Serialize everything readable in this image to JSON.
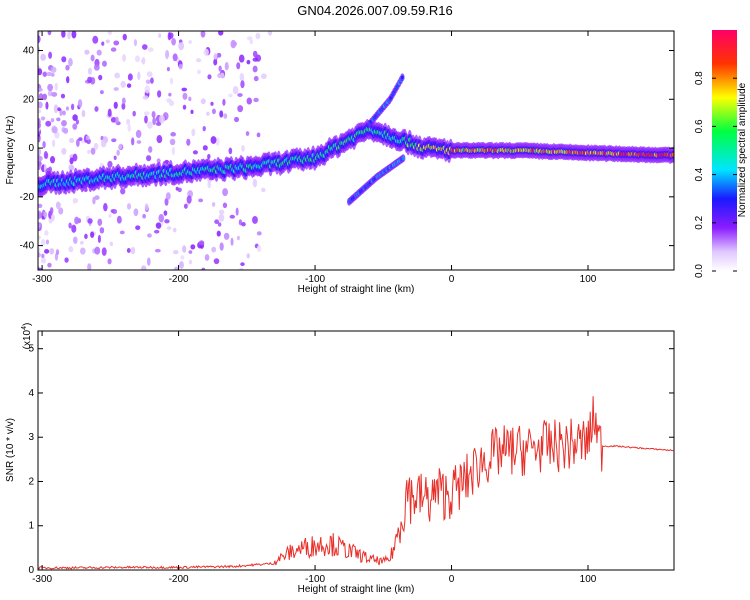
{
  "title": "GN04.2026.007.09.59.R16",
  "chart_data": [
    {
      "type": "heatmap",
      "xlabel": "Height of straight line (km)",
      "ylabel": "Frequency (Hz)",
      "xlim": [
        -303,
        163
      ],
      "ylim": [
        -50,
        48
      ],
      "xticks": [
        -300,
        -200,
        -100,
        0,
        100
      ],
      "yticks": [
        -40,
        -20,
        0,
        20,
        40
      ],
      "colorbar": {
        "label": "Normalized spectral amplitude",
        "range": [
          0,
          1
        ],
        "ticks": [
          0.0,
          0.2,
          0.4,
          0.6,
          0.8
        ],
        "colormap": [
          "#ffffff",
          "#8a1cff",
          "#1a1aff",
          "#00e5ff",
          "#00ff40",
          "#ffff00",
          "#ff3300",
          "#ff0066"
        ]
      },
      "ridge": [
        {
          "x": -303,
          "freq": -15,
          "amp": 0.45
        },
        {
          "x": -250,
          "freq": -12,
          "amp": 0.5
        },
        {
          "x": -200,
          "freq": -10,
          "amp": 0.5
        },
        {
          "x": -150,
          "freq": -8,
          "amp": 0.5
        },
        {
          "x": -100,
          "freq": -4,
          "amp": 0.55
        },
        {
          "x": -80,
          "freq": 2,
          "amp": 0.6
        },
        {
          "x": -60,
          "freq": 8,
          "amp": 0.55
        },
        {
          "x": -40,
          "freq": 4,
          "amp": 0.5
        },
        {
          "x": -20,
          "freq": 0,
          "amp": 0.75
        },
        {
          "x": 0,
          "freq": -1,
          "amp": 0.8
        },
        {
          "x": 50,
          "freq": -1,
          "amp": 0.8
        },
        {
          "x": 100,
          "freq": -2,
          "amp": 0.85
        },
        {
          "x": 163,
          "freq": -3,
          "amp": 0.95
        }
      ],
      "branch_lower": [
        {
          "x": -75,
          "freq": -22
        },
        {
          "x": -55,
          "freq": -12
        },
        {
          "x": -35,
          "freq": -4
        }
      ],
      "branch_upper": [
        {
          "x": -60,
          "freq": 10
        },
        {
          "x": -45,
          "freq": 20
        },
        {
          "x": -35,
          "freq": 30
        }
      ]
    },
    {
      "type": "line",
      "xlabel": "Height of straight line (km)",
      "ylabel": "SNR (10 * v/v)",
      "multiplier_label": "(x10",
      "multiplier_exp": "4",
      "xlim": [
        -303,
        163
      ],
      "ylim": [
        0,
        5.4
      ],
      "xticks": [
        -300,
        -200,
        -100,
        0,
        100
      ],
      "yticks": [
        0,
        1,
        2,
        3,
        4,
        5
      ],
      "series": [
        {
          "color": "#e8302a",
          "x": [
            -303,
            -270,
            -240,
            -200,
            -160,
            -130,
            -120,
            -110,
            -100,
            -90,
            -80,
            -70,
            -60,
            -50,
            -45,
            -40,
            -35,
            -30,
            -25,
            -20,
            -15,
            -10,
            -5,
            0,
            10,
            20,
            30,
            40,
            50,
            60,
            70,
            80,
            90,
            100,
            105,
            108,
            110,
            120,
            140,
            163
          ],
          "values": [
            0.05,
            0.05,
            0.06,
            0.06,
            0.08,
            0.15,
            0.3,
            0.4,
            0.45,
            0.5,
            0.4,
            0.3,
            0.2,
            0.15,
            0.2,
            0.6,
            1.2,
            1.6,
            1.7,
            1.6,
            1.6,
            1.8,
            1.7,
            1.75,
            2.0,
            2.4,
            2.6,
            2.7,
            2.7,
            2.75,
            2.8,
            2.8,
            2.85,
            2.9,
            3.5,
            2.9,
            2.8,
            2.8,
            2.75,
            2.7
          ]
        }
      ]
    }
  ]
}
